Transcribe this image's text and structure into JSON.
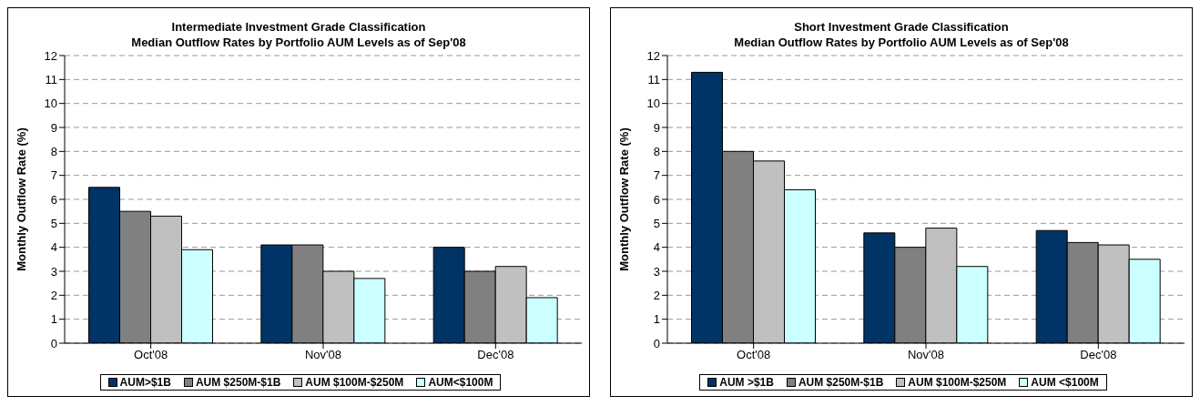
{
  "chart_data": [
    {
      "type": "bar",
      "title": "Intermediate Investment Grade Classification",
      "subtitle": "Median Outflow Rates by Portfolio AUM Levels as of Sep'08",
      "ylabel": "Monthly Outflow Rate (%)",
      "categories": [
        "Oct'08",
        "Nov'08",
        "Dec'08"
      ],
      "series": [
        {
          "name": "AUM>$1B",
          "color": "#003366",
          "values": [
            6.5,
            4.1,
            4.0
          ]
        },
        {
          "name": "AUM $250M-$1B",
          "color": "#808080",
          "values": [
            5.5,
            4.1,
            3.0
          ]
        },
        {
          "name": "AUM $100M-$250M",
          "color": "#c0c0c0",
          "values": [
            5.3,
            3.0,
            3.2
          ]
        },
        {
          "name": "AUM<$100M",
          "color": "#ccffff",
          "values": [
            3.9,
            2.7,
            1.9
          ]
        }
      ],
      "ylim": [
        0,
        12
      ],
      "yticks": [
        0,
        1,
        2,
        3,
        4,
        5,
        6,
        7,
        8,
        9,
        10,
        11,
        12
      ],
      "grid": "y",
      "legend": "bottom"
    },
    {
      "type": "bar",
      "title": "Short Investment Grade Classification",
      "subtitle": "Median Outflow Rates by Portfolio AUM Levels as of Sep'08",
      "ylabel": "Monthly Outflow Rate (%)",
      "categories": [
        "Oct'08",
        "Nov'08",
        "Dec'08"
      ],
      "series": [
        {
          "name": "AUM >$1B",
          "color": "#003366",
          "values": [
            11.3,
            4.6,
            4.7
          ]
        },
        {
          "name": "AUM $250M-$1B",
          "color": "#808080",
          "values": [
            8.0,
            4.0,
            4.2
          ]
        },
        {
          "name": "AUM $100M-$250M",
          "color": "#c0c0c0",
          "values": [
            7.6,
            4.8,
            4.1
          ]
        },
        {
          "name": "AUM <$100M",
          "color": "#ccffff",
          "values": [
            6.4,
            3.2,
            3.5
          ]
        }
      ],
      "ylim": [
        0,
        12
      ],
      "yticks": [
        0,
        1,
        2,
        3,
        4,
        5,
        6,
        7,
        8,
        9,
        10,
        11,
        12
      ],
      "grid": "y",
      "legend": "bottom"
    }
  ]
}
